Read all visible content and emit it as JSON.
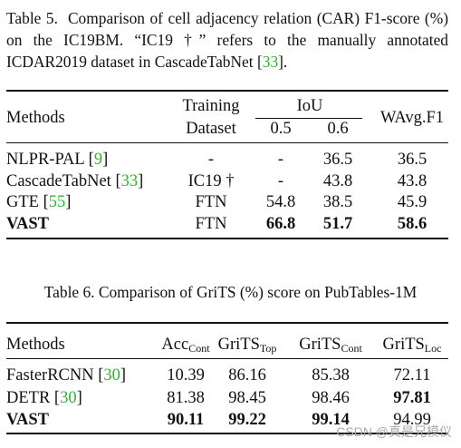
{
  "table5": {
    "caption_label": "Table 5.",
    "caption_text_a": "Comparison of cell adjacency relation (CAR) F1-score (%) on the IC19BM. “IC19 †” refers to the manually annotated ICDAR2019 dataset in CascadeTabNet [",
    "caption_cite": "33",
    "caption_text_b": "].",
    "headers": {
      "methods": "Methods",
      "training_line1": "Training",
      "training_line2": "Dataset",
      "iou": "IoU",
      "iou_05": "0.5",
      "iou_06": "0.6",
      "wavg": "WAvg.F1"
    },
    "rows": [
      {
        "method": "NLPR-PAL [",
        "cite": "9",
        "close": "]",
        "dataset": "-",
        "iou05": "-",
        "iou06": "36.5",
        "wavg": "36.5"
      },
      {
        "method": "CascadeTabNet [",
        "cite": "33",
        "close": "]",
        "dataset": "IC19 †",
        "iou05": "-",
        "iou06": "43.8",
        "wavg": "43.8"
      },
      {
        "method": "GTE [",
        "cite": "55",
        "close": "]",
        "dataset": "FTN",
        "iou05": "54.8",
        "iou06": "38.5",
        "wavg": "45.9"
      },
      {
        "method": "VAST",
        "cite": "",
        "close": "",
        "dataset": "FTN",
        "iou05": "66.8",
        "iou06": "51.7",
        "wavg": "58.6"
      }
    ]
  },
  "table6": {
    "caption": "Table 6. Comparison of GriTS (%) score on PubTables-1M",
    "headers": {
      "methods": "Methods",
      "acc": "Acc",
      "acc_sub": "Cont",
      "grits_top": "GriTS",
      "grits_top_sub": "Top",
      "grits_cont": "GriTS",
      "grits_cont_sub": "Cont",
      "grits_loc": "GriTS",
      "grits_loc_sub": "Loc"
    },
    "rows": [
      {
        "method": "FasterRCNN [",
        "cite": "30",
        "close": "]",
        "acc": "10.39",
        "top": "86.16",
        "cont": "85.38",
        "loc": "72.11"
      },
      {
        "method": "DETR [",
        "cite": "30",
        "close": "]",
        "acc": "81.38",
        "top": "98.45",
        "cont": "98.46",
        "loc": "97.81"
      },
      {
        "method": "VAST",
        "cite": "",
        "close": "",
        "acc": "90.11",
        "top": "99.22",
        "cont": "99.14",
        "loc": "94.99"
      }
    ]
  },
  "watermark": "CSDN @真是兄模仪"
}
